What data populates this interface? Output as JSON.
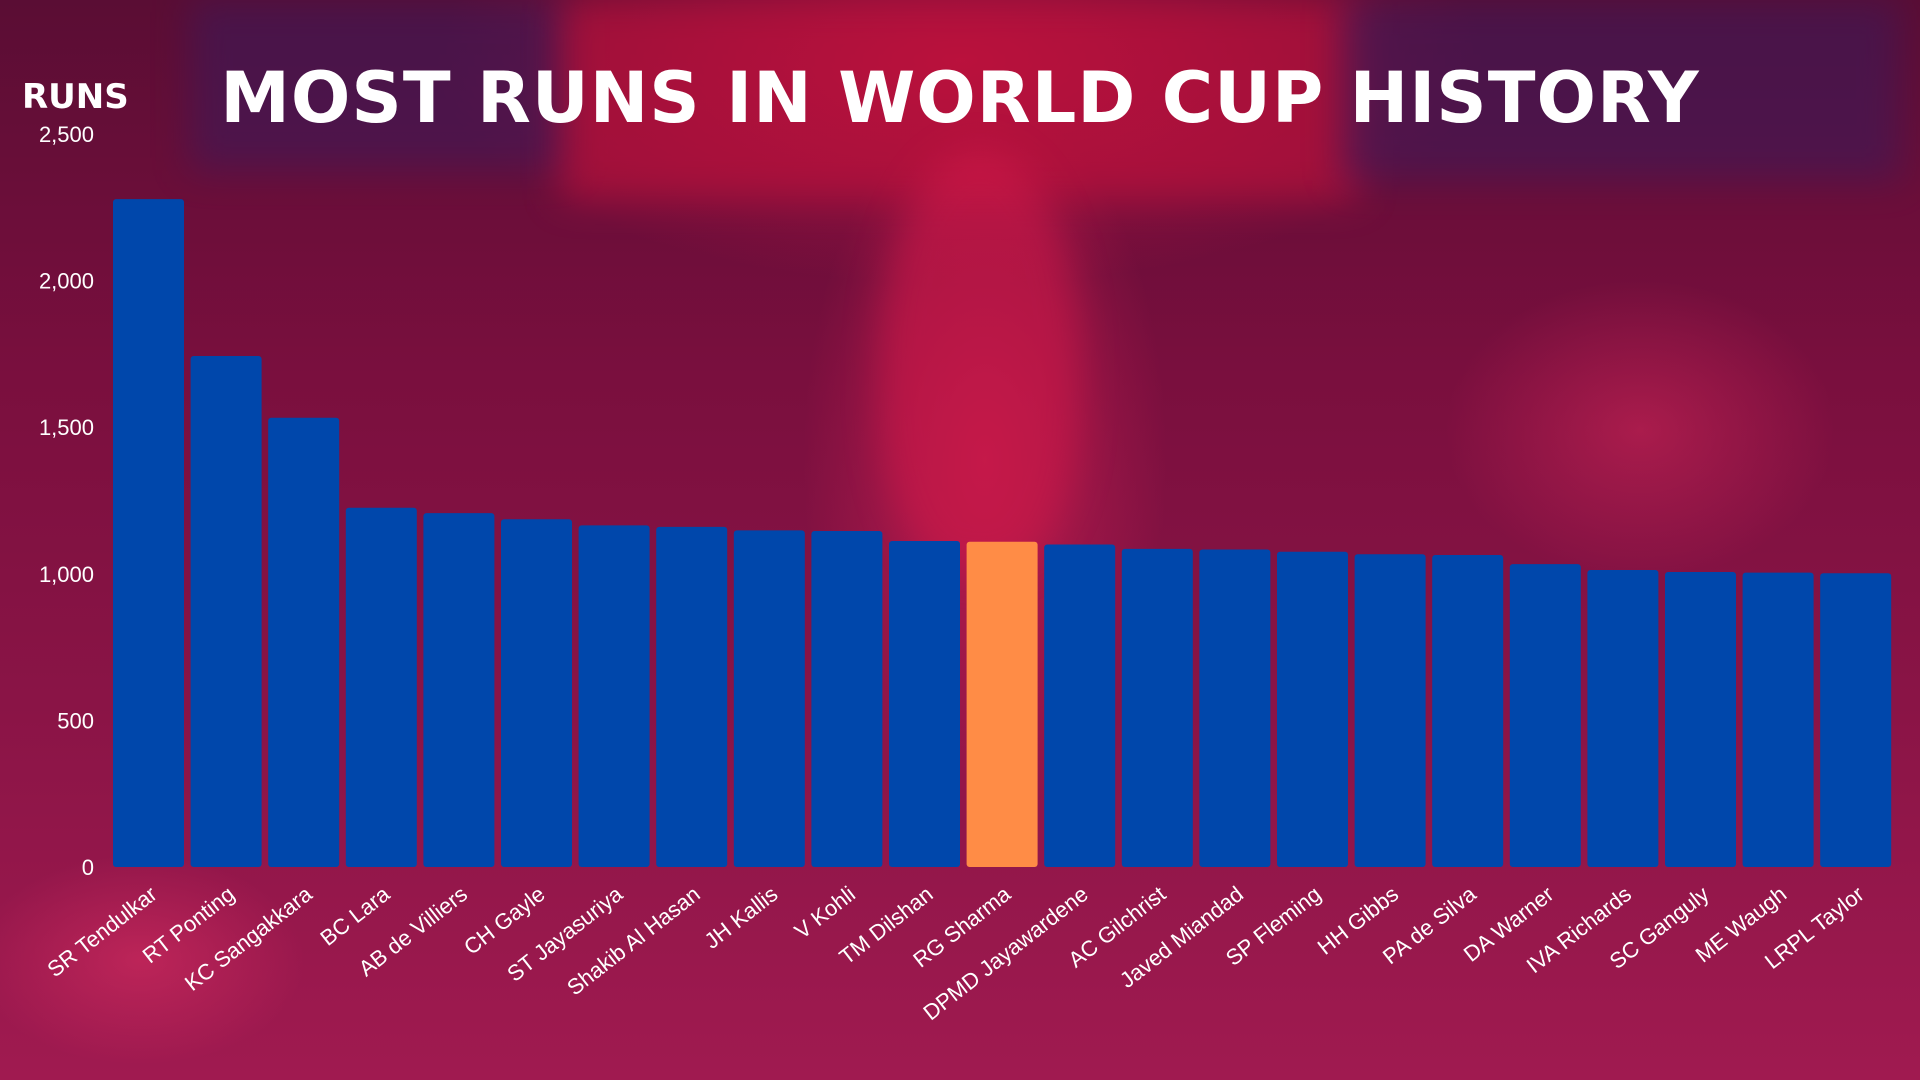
{
  "chart_data": {
    "type": "bar",
    "title": "MOST RUNS IN WORLD CUP HISTORY",
    "unit_label": "RUNS",
    "ylim": [
      0,
      2500
    ],
    "yticks": [
      "0",
      "500",
      "1,000",
      "1,500",
      "2,000",
      "2,500"
    ],
    "grid": false,
    "colors": {
      "default": "#0047ab",
      "highlight": "#ff8c46"
    },
    "highlight_category": "RG Sharma",
    "categories": [
      "SR Tendulkar",
      "RT Ponting",
      "KC Sangakkara",
      "BC Lara",
      "AB de Villiers",
      "CH Gayle",
      "ST Jayasuriya",
      "Shakib Al Hasan",
      "JH Kallis",
      "V Kohli",
      "TM Dilshan",
      "RG Sharma",
      "DPMD Jayawardene",
      "AC Gilchrist",
      "Javed Miandad",
      "SP Fleming",
      "HH Gibbs",
      "PA de Silva",
      "DA Warner",
      "IVA Richards",
      "SC Ganguly",
      "ME Waugh",
      "LRPL Taylor"
    ],
    "values": [
      2278,
      1743,
      1532,
      1225,
      1207,
      1186,
      1165,
      1160,
      1148,
      1146,
      1112,
      1109,
      1100,
      1085,
      1083,
      1075,
      1067,
      1064,
      1033,
      1013,
      1006,
      1004,
      1002
    ]
  }
}
